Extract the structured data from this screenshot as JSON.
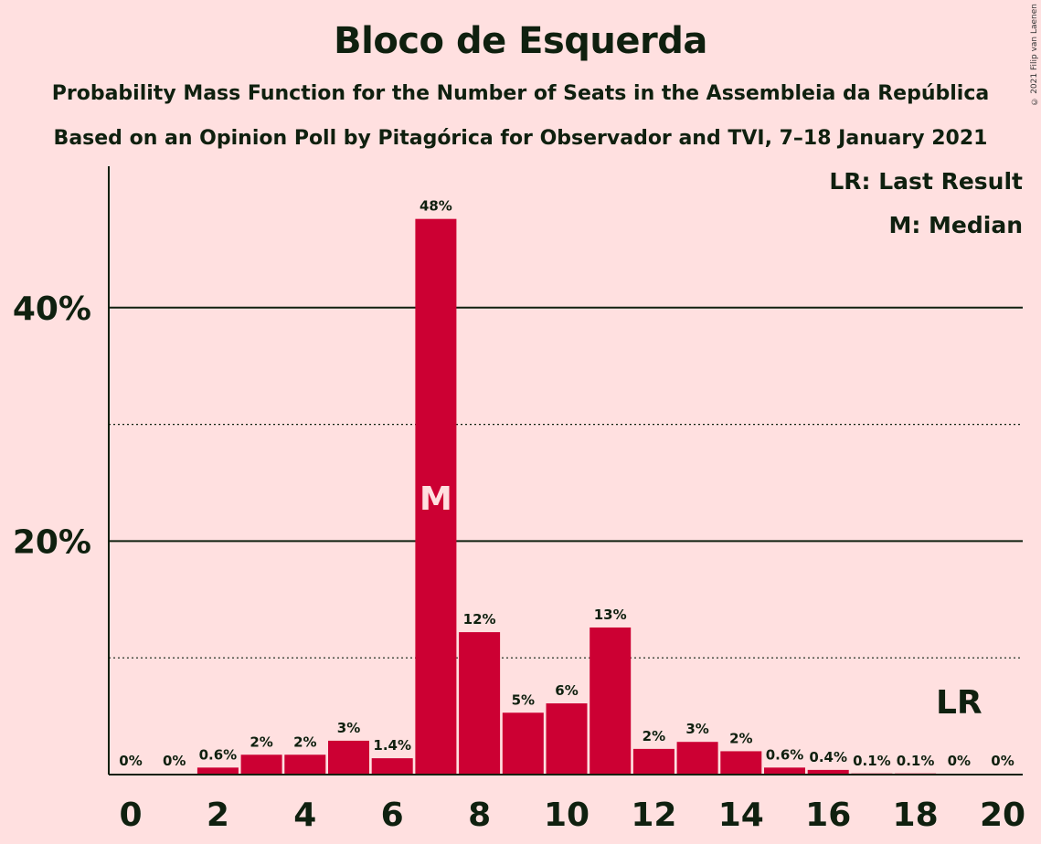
{
  "title": "Bloco de Esquerda",
  "subtitle_1": "Probability Mass Function for the Number of Seats in the Assembleia da República",
  "subtitle_2": "Based on an Opinion Poll by Pitagórica for Observador and TVI, 7–18 January 2021",
  "copyright": "© 2021 Filip van Laenen",
  "legend": {
    "last_result": "LR: Last Result",
    "median": "M: Median"
  },
  "colors": {
    "bar": "#CC0033",
    "background": "#FFE0E0",
    "text": "#0F200F"
  },
  "chart_data": {
    "type": "bar",
    "title": "Bloco de Esquerda",
    "xlabel": "",
    "ylabel": "",
    "x": [
      0,
      1,
      2,
      3,
      4,
      5,
      6,
      7,
      8,
      9,
      10,
      11,
      12,
      13,
      14,
      15,
      16,
      17,
      18,
      19,
      20
    ],
    "values": [
      0,
      0,
      0.6,
      1.7,
      1.7,
      2.9,
      1.4,
      47.6,
      12.2,
      5.3,
      6.1,
      12.6,
      2.2,
      2.8,
      2.0,
      0.6,
      0.4,
      0.1,
      0.1,
      0,
      0
    ],
    "value_labels": [
      "0%",
      "0%",
      "0.6%",
      "2%",
      "2%",
      "3%",
      "1.4%",
      "48%",
      "12%",
      "5%",
      "6%",
      "13%",
      "2%",
      "3%",
      "2%",
      "0.6%",
      "0.4%",
      "0.1%",
      "0.1%",
      "0%",
      "0%"
    ],
    "x_ticks": [
      "0",
      "2",
      "4",
      "6",
      "8",
      "10",
      "12",
      "14",
      "16",
      "18",
      "20"
    ],
    "y_ticks": [
      {
        "value": 20,
        "label": "20%"
      },
      {
        "value": 40,
        "label": "40%"
      }
    ],
    "y_minor_gridlines": [
      10,
      30
    ],
    "ylim": [
      0,
      52
    ],
    "median_seat": 7,
    "median_label": "M",
    "last_result_seat": 19,
    "last_result_label": "LR",
    "legend_position": "top-right"
  }
}
